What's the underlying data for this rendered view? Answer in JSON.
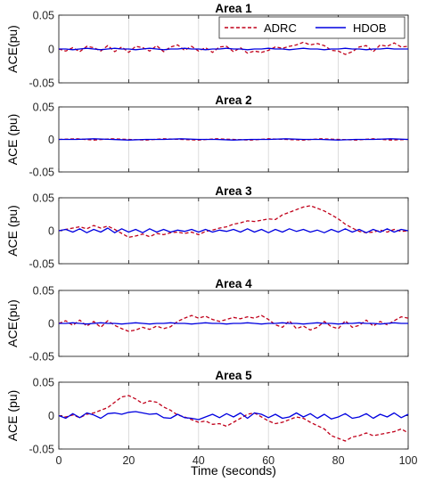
{
  "figure": {
    "xlabel": "Time (seconds)",
    "x_ticks": [
      "0",
      "20",
      "40",
      "60",
      "80",
      "100"
    ]
  },
  "legend": {
    "items": [
      {
        "label": "ADRC",
        "color": "#c0001a",
        "style": "dashed"
      },
      {
        "label": "HDOB",
        "color": "#0000e0",
        "style": "solid"
      }
    ]
  },
  "chart_data": [
    {
      "type": "line",
      "title": "Area 1",
      "ylabel": "ACE(pu)",
      "xlim": [
        0,
        100
      ],
      "ylim": [
        -0.05,
        0.05
      ],
      "y_ticks": [
        "0.05",
        "0",
        "-0.05"
      ],
      "grid": "vertical",
      "x": [
        0,
        2,
        4,
        6,
        8,
        10,
        12,
        14,
        16,
        18,
        20,
        22,
        24,
        26,
        28,
        30,
        32,
        34,
        36,
        38,
        40,
        42,
        44,
        46,
        48,
        50,
        52,
        54,
        56,
        58,
        60,
        62,
        64,
        66,
        68,
        70,
        72,
        74,
        76,
        78,
        80,
        82,
        84,
        86,
        88,
        90,
        92,
        94,
        96,
        98,
        100
      ],
      "series": [
        {
          "name": "ADRC",
          "values": [
            0.0,
            -0.003,
            0.002,
            -0.004,
            0.004,
            0.002,
            -0.003,
            0.005,
            -0.004,
            0.003,
            -0.005,
            0.004,
            0.002,
            -0.003,
            0.005,
            -0.004,
            0.003,
            0.006,
            -0.002,
            0.004,
            -0.003,
            0.002,
            -0.005,
            0.003,
            0.004,
            -0.004,
            0.002,
            -0.006,
            -0.003,
            -0.005,
            -0.002,
            0.003,
            0.001,
            0.004,
            0.006,
            0.01,
            0.006,
            0.008,
            0.005,
            -0.002,
            -0.003,
            -0.008,
            -0.004,
            0.003,
            0.005,
            -0.004,
            0.006,
            0.004,
            0.009,
            0.003,
            0.004
          ]
        },
        {
          "name": "HDOB",
          "values": [
            0.0,
            0.0,
            -0.001,
            0.0,
            0.001,
            0.0,
            -0.001,
            0.0,
            0.001,
            0.0,
            0.0,
            -0.001,
            0.0,
            0.001,
            0.0,
            -0.001,
            0.0,
            0.0,
            0.001,
            0.0,
            0.0,
            -0.001,
            0.0,
            0.0,
            0.001,
            0.0,
            0.0,
            -0.001,
            0.0,
            0.0,
            0.001,
            0.0,
            0.0,
            -0.001,
            0.0,
            0.001,
            0.0,
            0.0,
            -0.001,
            0.0,
            0.0,
            0.001,
            0.0,
            0.0,
            -0.001,
            0.0,
            0.0,
            0.001,
            0.0,
            0.0,
            0.0
          ]
        }
      ]
    },
    {
      "type": "line",
      "title": "Area 2",
      "ylabel": "ACE (pu)",
      "xlim": [
        0,
        100
      ],
      "ylim": [
        -0.05,
        0.05
      ],
      "y_ticks": [
        "0.05",
        "0",
        "-0.05"
      ],
      "grid": "vertical",
      "x": [
        0,
        5,
        10,
        15,
        20,
        25,
        30,
        35,
        40,
        45,
        50,
        55,
        60,
        65,
        70,
        75,
        80,
        85,
        90,
        95,
        100
      ],
      "series": [
        {
          "name": "ADRC",
          "values": [
            0.0,
            0.001,
            -0.001,
            0.001,
            0.0,
            -0.001,
            0.001,
            0.0,
            -0.001,
            0.001,
            0.0,
            -0.001,
            0.001,
            0.0,
            -0.001,
            0.001,
            0.0,
            -0.001,
            0.001,
            -0.001,
            0.0
          ]
        },
        {
          "name": "HDOB",
          "values": [
            0.0,
            0.0,
            0.001,
            0.0,
            -0.001,
            0.0,
            0.0,
            0.001,
            0.0,
            0.0,
            -0.001,
            0.0,
            0.0,
            0.001,
            0.0,
            0.0,
            -0.001,
            0.0,
            0.0,
            0.001,
            0.0
          ]
        }
      ]
    },
    {
      "type": "line",
      "title": "Area 3",
      "ylabel": "ACE (pu)",
      "xlim": [
        0,
        100
      ],
      "ylim": [
        -0.05,
        0.05
      ],
      "y_ticks": [
        "0.05",
        "0",
        "-0.05"
      ],
      "grid": "vertical",
      "x": [
        0,
        2,
        4,
        6,
        8,
        10,
        12,
        14,
        16,
        18,
        20,
        22,
        24,
        26,
        28,
        30,
        32,
        34,
        36,
        38,
        40,
        42,
        44,
        46,
        48,
        50,
        52,
        54,
        56,
        58,
        60,
        62,
        64,
        66,
        68,
        70,
        72,
        74,
        76,
        78,
        80,
        82,
        84,
        86,
        88,
        90,
        92,
        94,
        96,
        98,
        100
      ],
      "series": [
        {
          "name": "ADRC",
          "values": [
            0.0,
            0.002,
            0.004,
            0.006,
            0.003,
            0.008,
            0.004,
            0.007,
            0.002,
            -0.004,
            -0.01,
            -0.008,
            -0.005,
            -0.009,
            -0.004,
            -0.006,
            -0.003,
            -0.002,
            -0.004,
            -0.002,
            -0.006,
            -0.001,
            0.001,
            0.004,
            0.006,
            0.01,
            0.012,
            0.015,
            0.014,
            0.016,
            0.018,
            0.017,
            0.024,
            0.028,
            0.032,
            0.036,
            0.038,
            0.034,
            0.03,
            0.024,
            0.018,
            0.01,
            0.004,
            -0.001,
            -0.003,
            -0.002,
            0.001,
            -0.002,
            0.002,
            -0.001,
            0.0
          ]
        },
        {
          "name": "HDOB",
          "values": [
            0.0,
            0.002,
            -0.002,
            0.003,
            -0.003,
            0.002,
            -0.002,
            0.004,
            -0.003,
            0.003,
            -0.002,
            0.002,
            -0.003,
            0.003,
            -0.002,
            0.002,
            -0.002,
            0.001,
            -0.001,
            0.002,
            -0.002,
            0.002,
            -0.002,
            0.001,
            -0.001,
            0.002,
            -0.002,
            0.003,
            -0.002,
            0.002,
            -0.003,
            0.002,
            -0.002,
            0.003,
            -0.001,
            0.002,
            -0.002,
            0.001,
            -0.003,
            0.002,
            -0.002,
            0.003,
            -0.002,
            0.002,
            -0.003,
            0.002,
            -0.002,
            0.003,
            -0.002,
            0.002,
            0.0
          ]
        }
      ]
    },
    {
      "type": "line",
      "title": "Area 4",
      "ylabel": "ACE(pu)",
      "xlim": [
        0,
        100
      ],
      "ylim": [
        -0.05,
        0.05
      ],
      "y_ticks": [
        "0.05",
        "0",
        "-0.05"
      ],
      "grid": "vertical",
      "x": [
        0,
        2,
        4,
        6,
        8,
        10,
        12,
        14,
        16,
        18,
        20,
        22,
        24,
        26,
        28,
        30,
        32,
        34,
        36,
        38,
        40,
        42,
        44,
        46,
        48,
        50,
        52,
        54,
        56,
        58,
        60,
        62,
        64,
        66,
        68,
        70,
        72,
        74,
        76,
        78,
        80,
        82,
        84,
        86,
        88,
        90,
        92,
        94,
        96,
        98,
        100
      ],
      "series": [
        {
          "name": "ADRC",
          "values": [
            0.0,
            0.004,
            -0.003,
            0.005,
            -0.004,
            0.003,
            -0.006,
            0.004,
            -0.003,
            -0.008,
            -0.012,
            -0.01,
            -0.006,
            -0.009,
            -0.004,
            -0.008,
            -0.005,
            0.003,
            0.008,
            0.012,
            0.008,
            0.011,
            0.006,
            0.003,
            0.006,
            0.009,
            0.007,
            0.01,
            0.008,
            0.012,
            0.006,
            -0.002,
            -0.006,
            0.004,
            -0.008,
            -0.004,
            -0.01,
            -0.006,
            0.003,
            -0.005,
            -0.008,
            0.004,
            -0.006,
            -0.003,
            0.005,
            -0.004,
            0.003,
            -0.002,
            0.004,
            0.01,
            0.008
          ]
        },
        {
          "name": "HDOB",
          "values": [
            0.0,
            0.0,
            0.001,
            0.0,
            -0.001,
            0.0,
            0.001,
            0.0,
            0.0,
            -0.001,
            0.0,
            0.001,
            0.0,
            -0.001,
            0.0,
            0.0,
            0.001,
            0.0,
            0.0,
            -0.001,
            0.0,
            0.001,
            0.0,
            0.0,
            -0.001,
            0.0,
            0.0,
            0.001,
            0.0,
            -0.001,
            0.0,
            0.0,
            0.001,
            0.0,
            0.0,
            -0.001,
            0.0,
            0.001,
            0.0,
            0.0,
            -0.001,
            0.0,
            0.0,
            0.001,
            0.0,
            0.0,
            -0.001,
            0.0,
            0.001,
            0.0,
            0.0
          ]
        }
      ]
    },
    {
      "type": "line",
      "title": "Area 5",
      "ylabel": "ACE (pu)",
      "xlim": [
        0,
        100
      ],
      "ylim": [
        -0.05,
        0.05
      ],
      "y_ticks": [
        "0.05",
        "0",
        "-0.05"
      ],
      "grid": "vertical",
      "x": [
        0,
        2,
        4,
        6,
        8,
        10,
        12,
        14,
        16,
        18,
        20,
        22,
        24,
        26,
        28,
        30,
        32,
        34,
        36,
        38,
        40,
        42,
        44,
        46,
        48,
        50,
        52,
        54,
        56,
        58,
        60,
        62,
        64,
        66,
        68,
        70,
        72,
        74,
        76,
        78,
        80,
        82,
        84,
        86,
        88,
        90,
        92,
        94,
        96,
        98,
        100
      ],
      "series": [
        {
          "name": "ADRC",
          "values": [
            0.0,
            -0.002,
            0.001,
            -0.003,
            0.002,
            0.004,
            0.008,
            0.012,
            0.02,
            0.028,
            0.03,
            0.025,
            0.018,
            0.022,
            0.02,
            0.013,
            0.008,
            0.001,
            -0.002,
            -0.006,
            -0.01,
            -0.008,
            -0.013,
            -0.012,
            -0.016,
            -0.01,
            -0.004,
            0.002,
            0.004,
            -0.002,
            -0.008,
            -0.012,
            -0.01,
            -0.006,
            -0.002,
            -0.004,
            -0.01,
            -0.015,
            -0.02,
            -0.03,
            -0.034,
            -0.038,
            -0.032,
            -0.03,
            -0.026,
            -0.03,
            -0.028,
            -0.026,
            -0.024,
            -0.02,
            -0.026
          ]
        },
        {
          "name": "HDOB",
          "values": [
            0.0,
            -0.004,
            0.003,
            -0.003,
            0.004,
            0.001,
            -0.004,
            0.003,
            0.004,
            0.002,
            0.005,
            0.006,
            0.004,
            0.002,
            0.003,
            -0.003,
            -0.004,
            0.002,
            -0.003,
            -0.004,
            -0.006,
            -0.002,
            0.002,
            -0.003,
            0.003,
            -0.002,
            0.004,
            -0.004,
            0.004,
            0.002,
            -0.003,
            0.002,
            -0.004,
            -0.002,
            0.004,
            -0.002,
            0.003,
            -0.004,
            0.002,
            -0.005,
            -0.002,
            0.003,
            -0.004,
            -0.002,
            0.003,
            -0.004,
            0.002,
            -0.002,
            0.004,
            -0.003,
            0.002
          ]
        }
      ]
    }
  ]
}
